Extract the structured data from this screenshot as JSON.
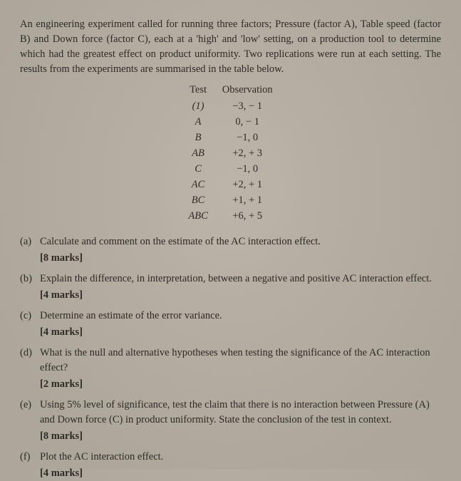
{
  "intro": "An engineering experiment called for running three factors; Pressure (factor A), Table speed (factor B) and Down force (factor C), each at a 'high' and 'low' setting, on a production tool to determine which had the greatest effect on product uniformity. Two replications were run at each setting. The results from the experiments are summarised in the table below.",
  "table": {
    "header": {
      "c1": "Test",
      "c2": "Observation"
    },
    "rows": [
      {
        "t": "(1)",
        "o": "−3,  − 1"
      },
      {
        "t": "A",
        "o": "0,  − 1"
      },
      {
        "t": "B",
        "o": "−1,  0"
      },
      {
        "t": "AB",
        "o": "+2,  + 3"
      },
      {
        "t": "C",
        "o": "−1,  0"
      },
      {
        "t": "AC",
        "o": "+2,  + 1"
      },
      {
        "t": "BC",
        "o": "+1,  + 1"
      },
      {
        "t": "ABC",
        "o": "+6,  + 5"
      }
    ]
  },
  "parts": {
    "a": {
      "lab": "(a)",
      "text": "Calculate and comment on the estimate of the AC interaction effect.",
      "marks": "[8 marks]"
    },
    "b": {
      "lab": "(b)",
      "text": "Explain the difference, in interpretation, between a negative and positive AC interaction effect.",
      "marks": "[4 marks]"
    },
    "c": {
      "lab": "(c)",
      "text": "Determine an estimate of the error variance.",
      "marks": "[4 marks]"
    },
    "d": {
      "lab": "(d)",
      "text": "What is the null and alternative hypotheses when testing the significance of the AC interaction effect?",
      "marks": "[2 marks]"
    },
    "e": {
      "lab": "(e)",
      "text": "Using 5% level of significance, test the claim that there is no interaction between Pressure (A) and Down force (C) in product uniformity. State the conclusion of the test in context.",
      "marks": "[8 marks]"
    },
    "f": {
      "lab": "(f)",
      "text": "Plot the AC interaction effect.",
      "marks": "[4 marks]"
    }
  }
}
